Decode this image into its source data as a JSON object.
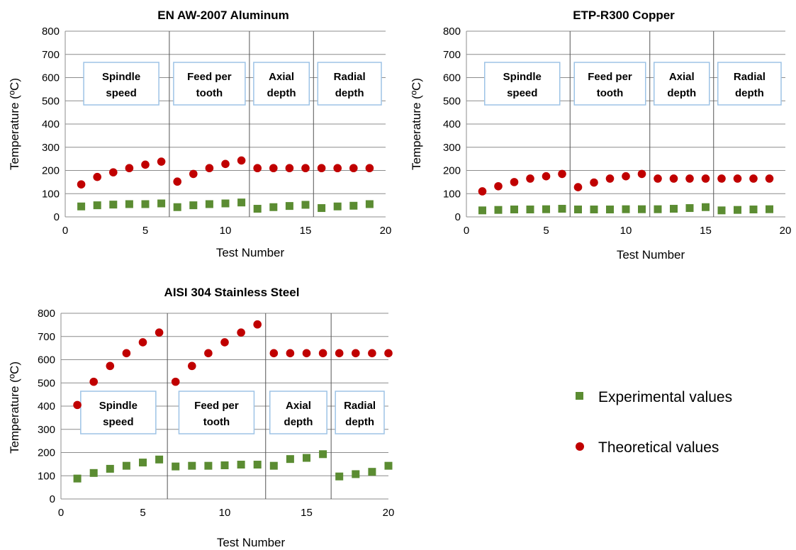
{
  "colors": {
    "experimental": "#5b8c32",
    "theoretical": "#c00000",
    "grid": "#8c8c8c",
    "box_border": "#9dc3e6",
    "divider": "#555555"
  },
  "legend": {
    "placement": "right",
    "items": [
      {
        "label": "Experimental values",
        "marker": "square",
        "color": "#5b8c32"
      },
      {
        "label": "Theoretical values",
        "marker": "circle",
        "color": "#c00000"
      }
    ]
  },
  "chart_data": [
    {
      "type": "scatter",
      "title": "EN AW-2007 Aluminum",
      "xlabel": "Test Number",
      "ylabel": "Temperature (ºC)",
      "xlim": [
        0,
        20
      ],
      "ylim": [
        0,
        800
      ],
      "xticks": [
        0,
        5,
        10,
        15,
        20
      ],
      "yticks": [
        0,
        100,
        200,
        300,
        400,
        500,
        600,
        700,
        800
      ],
      "grid": "horizontal",
      "dividers": [
        6.5,
        11.5,
        15.5
      ],
      "groups": [
        {
          "label": [
            "Spindle",
            "speed"
          ],
          "x_range": [
            0.5,
            6.5
          ]
        },
        {
          "label": [
            "Feed per",
            "tooth"
          ],
          "x_range": [
            6.5,
            11.5
          ]
        },
        {
          "label": [
            "Axial",
            "depth"
          ],
          "x_range": [
            11.5,
            15.5
          ]
        },
        {
          "label": [
            "Radial",
            "depth"
          ],
          "x_range": [
            15.5,
            20
          ]
        }
      ],
      "series": [
        {
          "name": "Experimental values",
          "marker": "square",
          "x": [
            1,
            2,
            3,
            4,
            5,
            6,
            7,
            8,
            9,
            10,
            11,
            12,
            13,
            14,
            15,
            16,
            17,
            18,
            19
          ],
          "y": [
            45,
            50,
            53,
            55,
            55,
            58,
            42,
            50,
            55,
            58,
            62,
            35,
            42,
            47,
            52,
            38,
            45,
            48,
            55
          ]
        },
        {
          "name": "Theoretical values",
          "marker": "circle",
          "x": [
            1,
            2,
            3,
            4,
            5,
            6,
            7,
            8,
            9,
            10,
            11,
            12,
            13,
            14,
            15,
            16,
            17,
            18,
            19
          ],
          "y": [
            140,
            172,
            192,
            210,
            225,
            238,
            152,
            185,
            210,
            228,
            243,
            210,
            210,
            210,
            210,
            210,
            210,
            210,
            210
          ]
        }
      ]
    },
    {
      "type": "scatter",
      "title": "ETP-R300 Copper",
      "xlabel": "Test Number",
      "ylabel": "Temperature (ºC)",
      "xlim": [
        0,
        20
      ],
      "ylim": [
        0,
        800
      ],
      "xticks": [
        0,
        5,
        10,
        15,
        20
      ],
      "yticks": [
        0,
        100,
        200,
        300,
        400,
        500,
        600,
        700,
        800
      ],
      "grid": "horizontal",
      "dividers": [
        6.5,
        11.5,
        15.5
      ],
      "groups": [
        {
          "label": [
            "Spindle",
            "speed"
          ],
          "x_range": [
            0.5,
            6.5
          ]
        },
        {
          "label": [
            "Feed per",
            "tooth"
          ],
          "x_range": [
            6.5,
            11.5
          ]
        },
        {
          "label": [
            "Axial",
            "depth"
          ],
          "x_range": [
            11.5,
            15.5
          ]
        },
        {
          "label": [
            "Radial",
            "depth"
          ],
          "x_range": [
            15.5,
            20
          ]
        }
      ],
      "series": [
        {
          "name": "Experimental values",
          "marker": "square",
          "x": [
            1,
            2,
            3,
            4,
            5,
            6,
            7,
            8,
            9,
            10,
            11,
            12,
            13,
            14,
            15,
            16,
            17,
            18,
            19
          ],
          "y": [
            28,
            30,
            32,
            32,
            33,
            35,
            32,
            32,
            32,
            33,
            33,
            33,
            35,
            38,
            42,
            28,
            30,
            32,
            33
          ]
        },
        {
          "name": "Theoretical values",
          "marker": "circle",
          "x": [
            1,
            2,
            3,
            4,
            5,
            6,
            7,
            8,
            9,
            10,
            11,
            12,
            13,
            14,
            15,
            16,
            17,
            18,
            19
          ],
          "y": [
            110,
            132,
            150,
            165,
            175,
            185,
            128,
            148,
            165,
            175,
            185,
            165,
            165,
            165,
            165,
            165,
            165,
            165,
            165
          ]
        }
      ]
    },
    {
      "type": "scatter",
      "title": "AISI 304 Stainless Steel",
      "xlabel": "Test Number",
      "ylabel": "Temperature (ºC)",
      "xlim": [
        0,
        20
      ],
      "ylim": [
        0,
        800
      ],
      "xticks": [
        0,
        5,
        10,
        15,
        20
      ],
      "yticks": [
        0,
        100,
        200,
        300,
        400,
        500,
        600,
        700,
        800
      ],
      "grid": "horizontal",
      "dividers": [
        6.5,
        12.5,
        16.5
      ],
      "groups": [
        {
          "label": [
            "Spindle",
            "speed"
          ],
          "x_range": [
            0.5,
            6.5
          ]
        },
        {
          "label": [
            "Feed per",
            "tooth"
          ],
          "x_range": [
            6.5,
            12.5
          ]
        },
        {
          "label": [
            "Axial",
            "depth"
          ],
          "x_range": [
            12.5,
            16.5
          ]
        },
        {
          "label": [
            "Radial",
            "depth"
          ],
          "x_range": [
            16.5,
            20
          ]
        }
      ],
      "series": [
        {
          "name": "Experimental values",
          "marker": "square",
          "x": [
            1,
            2,
            3,
            4,
            5,
            6,
            7,
            8,
            9,
            10,
            11,
            12,
            13,
            14,
            15,
            16,
            17,
            18,
            19,
            20
          ],
          "y": [
            88,
            112,
            130,
            143,
            157,
            170,
            140,
            143,
            143,
            145,
            148,
            148,
            143,
            172,
            177,
            193,
            97,
            107,
            117,
            143
          ]
        },
        {
          "name": "Theoretical values",
          "marker": "circle",
          "x": [
            1,
            2,
            3,
            4,
            5,
            6,
            7,
            8,
            9,
            10,
            11,
            12,
            13,
            14,
            15,
            16,
            17,
            18,
            19,
            20
          ],
          "y": [
            405,
            505,
            573,
            628,
            675,
            717,
            505,
            573,
            628,
            675,
            717,
            752,
            628,
            628,
            628,
            628,
            628,
            628,
            628,
            628
          ]
        }
      ]
    }
  ]
}
